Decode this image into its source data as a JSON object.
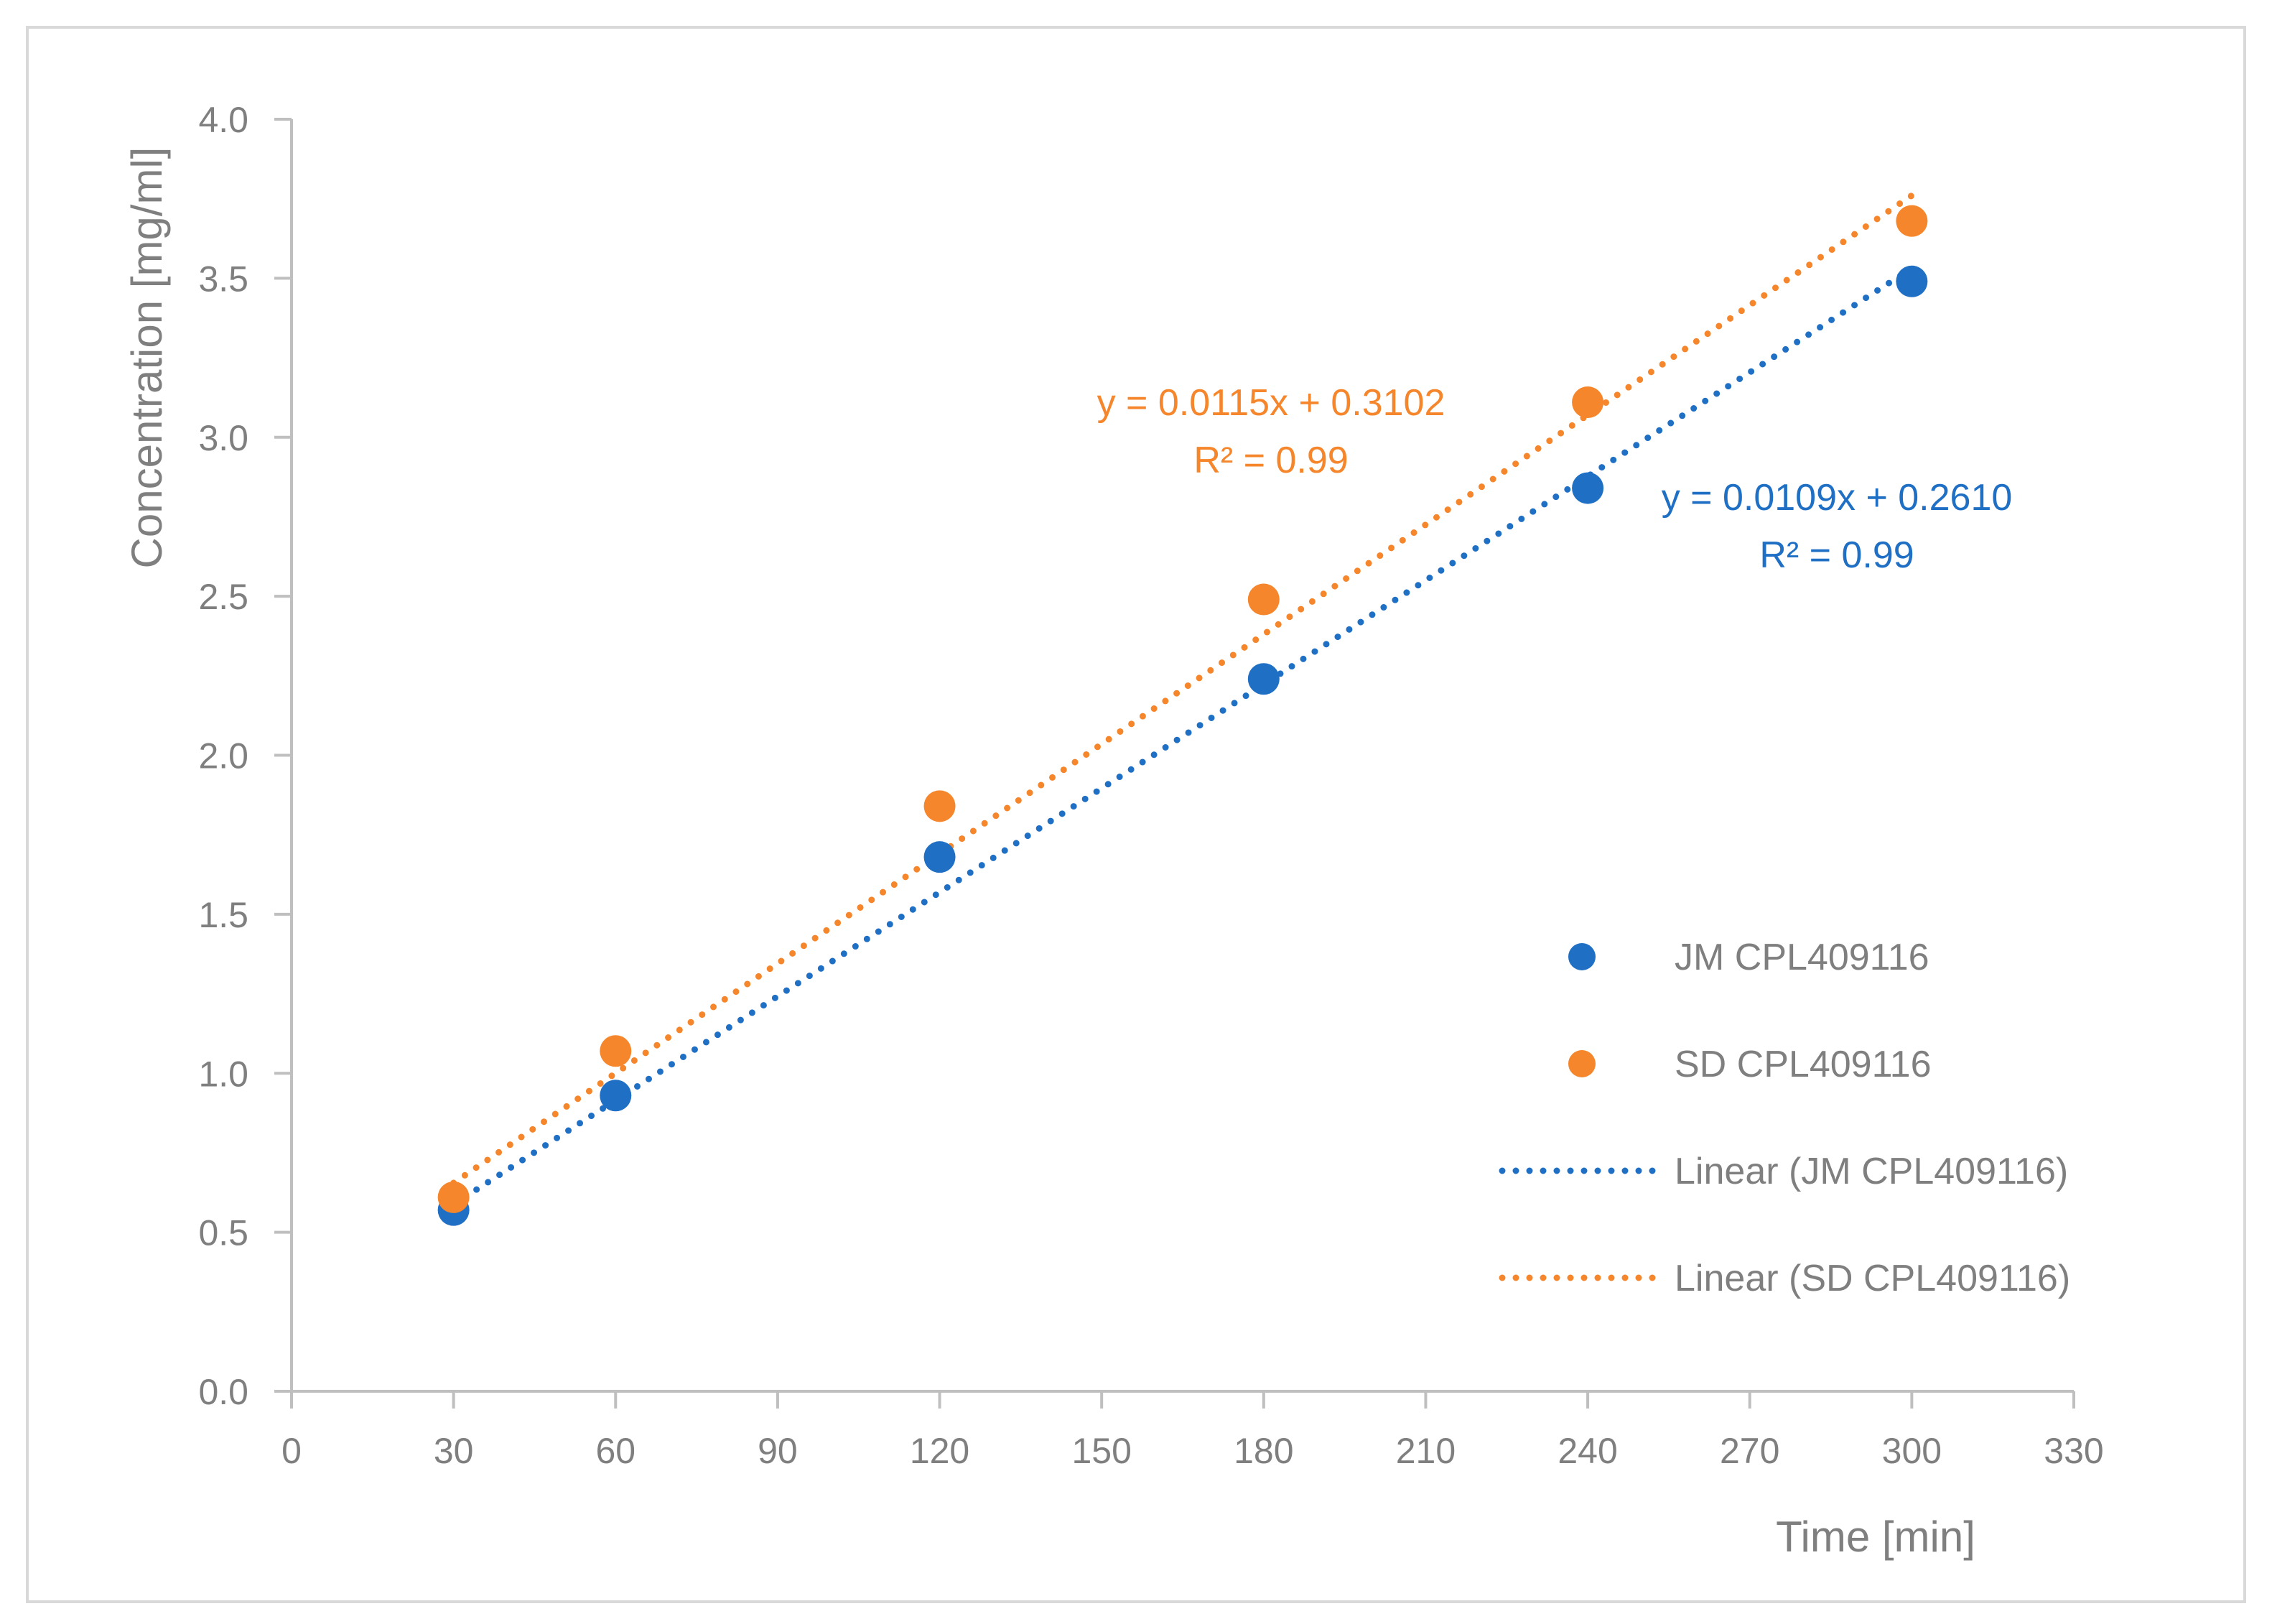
{
  "chart_data": {
    "type": "scatter",
    "title": "",
    "xlabel": "Time [min]",
    "ylabel": "Concentration [mg/ml]",
    "xlim": [
      0,
      330
    ],
    "ylim": [
      0,
      4.0
    ],
    "x_ticks": [
      "0",
      "30",
      "60",
      "90",
      "120",
      "150",
      "180",
      "210",
      "240",
      "270",
      "300",
      "330"
    ],
    "y_ticks": [
      "0.0",
      "0.5",
      "1.0",
      "1.5",
      "2.0",
      "2.5",
      "3.0",
      "3.5",
      "4.0"
    ],
    "series": [
      {
        "name": "JM CPL409116",
        "color": "#1f6fc5",
        "x": [
          30,
          60,
          120,
          180,
          240,
          300
        ],
        "y": [
          0.57,
          0.93,
          1.68,
          2.24,
          2.84,
          3.49
        ],
        "trendline": {
          "name": "Linear (JM CPL409116)",
          "slope": 0.0109,
          "intercept": 0.261,
          "equation": "y = 0.0109x + 0.2610",
          "r2": "R² = 0.99"
        }
      },
      {
        "name": "SD CPL409116",
        "color": "#f5862b",
        "x": [
          30,
          60,
          120,
          180,
          240,
          300
        ],
        "y": [
          0.61,
          1.07,
          1.84,
          2.49,
          3.11,
          3.68
        ],
        "trendline": {
          "name": "Linear (SD CPL409116)",
          "slope": 0.0115,
          "intercept": 0.3102,
          "equation": "y = 0.0115x + 0.3102",
          "r2": "R² = 0.99"
        }
      }
    ],
    "legend_position": "right"
  },
  "colors": {
    "axis": "#bfbfbf",
    "text": "#7f7f7f",
    "border": "#d9d9d9"
  }
}
